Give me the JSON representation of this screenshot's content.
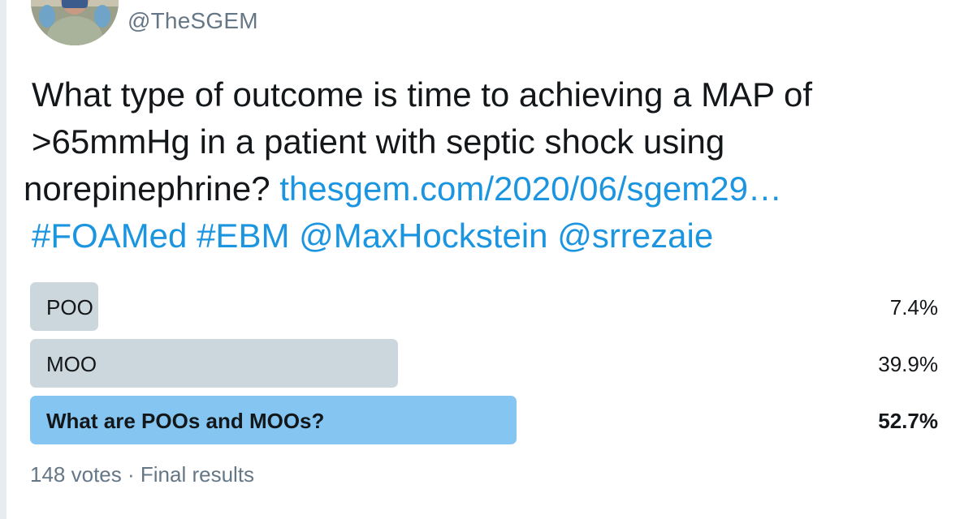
{
  "tweet": {
    "handle": "@TheSGEM",
    "text_line1": "What type of outcome is time to achieving a MAP of",
    "text_line2": ">65mmHg in a patient with septic shock using",
    "text_line3": "norepinephrine?",
    "link": "thesgem.com/2020/06/sgem29…",
    "hashtag1": "#FOAMed",
    "hashtag2": "#EBM",
    "mention1": "@MaxHockstein",
    "mention2": "@srrezaie"
  },
  "poll": {
    "options": [
      {
        "label": "POO",
        "percent_text": "7.4%",
        "percent": 7.4,
        "winner": false
      },
      {
        "label": "MOO",
        "percent_text": "39.9%",
        "percent": 39.9,
        "winner": false
      },
      {
        "label": "What are POOs and MOOs?",
        "percent_text": "52.7%",
        "percent": 52.7,
        "winner": true
      }
    ],
    "votes": "148 votes",
    "separator": "·",
    "status": "Final results"
  },
  "colors": {
    "text": "#14171a",
    "secondary": "#657786",
    "link": "#1b95e0",
    "bar": "#ccd6dd",
    "bar_winner": "#84c6f1"
  }
}
